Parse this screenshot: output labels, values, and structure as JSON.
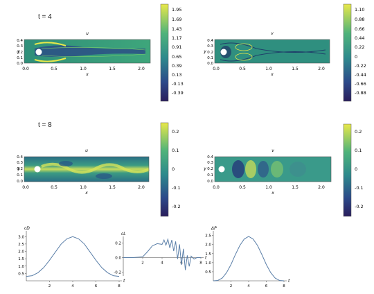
{
  "time_labels": [
    "t = 4",
    "t = 8"
  ],
  "field_plots": [
    {
      "time": "t = 4",
      "title": "u",
      "xlabel": "x",
      "ylabel": "y",
      "xticks": [
        "0.0",
        "0.5",
        "1.0",
        "1.5",
        "2.0"
      ],
      "yticks": [
        "0.0",
        "0.1",
        "0.2",
        "0.3",
        "0.4"
      ],
      "colorbar_ticks": [
        "1.95",
        "1.69",
        "1.43",
        "1.17",
        "0.91",
        "0.65",
        "0.39",
        "0.13",
        "-0.13",
        "-0.39"
      ]
    },
    {
      "time": "t = 4",
      "title": "v",
      "xlabel": "x",
      "ylabel": "y",
      "xticks": [
        "0.0",
        "0.5",
        "1.0",
        "1.5",
        "2.0"
      ],
      "yticks": [
        "0.0",
        "0.1",
        "0.2",
        "0.3",
        "0.4"
      ],
      "colorbar_ticks": [
        "1.10",
        "0.88",
        "0.66",
        "0.44",
        "0.22",
        "0",
        "-0.22",
        "-0.44",
        "-0.66",
        "-0.88"
      ]
    },
    {
      "time": "t = 8",
      "title": "u",
      "xlabel": "x",
      "ylabel": "y",
      "xticks": [
        "0.0",
        "0.5",
        "1.0",
        "1.5",
        "2.0"
      ],
      "yticks": [
        "0.0",
        "0.1",
        "0.2",
        "0.3",
        "0.4"
      ],
      "colorbar_ticks": [
        "0.2",
        "0.1",
        "0",
        "-0.1",
        "-0.2"
      ]
    },
    {
      "time": "t = 8",
      "title": "v",
      "xlabel": "x",
      "ylabel": "y",
      "xticks": [
        "0.0",
        "0.5",
        "1.0",
        "1.5",
        "2.0"
      ],
      "yticks": [
        "0.0",
        "0.1",
        "0.2",
        "0.3",
        "0.4"
      ],
      "colorbar_ticks": [
        "0.2",
        "0.1",
        "0",
        "-0.1",
        "-0.2"
      ]
    }
  ],
  "chart_data": [
    {
      "type": "line",
      "title": "",
      "ylabel": "cD",
      "xlabel": "t",
      "xlim": [
        0,
        8
      ],
      "ylim": [
        0,
        3.2
      ],
      "xticks": [
        "2",
        "4",
        "6",
        "8"
      ],
      "yticks": [
        "0.5",
        "1.0",
        "1.5",
        "2.0",
        "2.5",
        "3.0"
      ],
      "series": [
        {
          "x": [
            0,
            0.5,
            1,
            1.5,
            2,
            2.5,
            3,
            3.5,
            4,
            4.5,
            5,
            5.5,
            6,
            6.5,
            7,
            7.5,
            8
          ],
          "values": [
            0.3,
            0.35,
            0.55,
            0.9,
            1.4,
            1.95,
            2.5,
            2.85,
            3.0,
            2.85,
            2.5,
            1.95,
            1.4,
            0.9,
            0.55,
            0.35,
            0.3
          ]
        }
      ]
    },
    {
      "type": "line",
      "title": "",
      "ylabel": "cL",
      "xlabel": "t",
      "xlim": [
        0,
        8
      ],
      "ylim": [
        -0.25,
        0.25
      ],
      "xticks": [
        "2",
        "4",
        "6",
        "8"
      ],
      "yticks": [
        "-0.2",
        "0.0",
        "0.2"
      ],
      "series": [
        {
          "x": [
            0,
            1,
            2,
            2.5,
            3,
            3.5,
            4,
            4.2,
            4.4,
            4.6,
            4.8,
            5,
            5.2,
            5.4,
            5.6,
            5.8,
            6,
            6.2,
            6.4,
            6.6,
            6.8,
            7,
            7.3,
            7.6,
            8
          ],
          "values": [
            0,
            0,
            0.01,
            0.08,
            0.16,
            0.19,
            0.18,
            0.24,
            0.17,
            0.25,
            0.13,
            0.24,
            0.09,
            0.22,
            -0.02,
            0.18,
            -0.1,
            0.12,
            -0.17,
            0.03,
            -0.12,
            0.02,
            -0.02,
            0.0,
            0.0
          ]
        }
      ]
    },
    {
      "type": "line",
      "title": "",
      "ylabel": "ΔP",
      "xlabel": "t",
      "xlim": [
        0,
        8
      ],
      "ylim": [
        0,
        2.6
      ],
      "xticks": [
        "2",
        "4",
        "6",
        "8"
      ],
      "yticks": [
        "0.5",
        "1.0",
        "1.5",
        "2.0",
        "2.5"
      ],
      "series": [
        {
          "x": [
            0,
            0.5,
            1,
            1.5,
            2,
            2.5,
            3,
            3.5,
            4,
            4.5,
            5,
            5.5,
            6,
            6.5,
            7,
            7.5,
            8
          ],
          "values": [
            0,
            0.02,
            0.15,
            0.45,
            0.9,
            1.45,
            1.95,
            2.3,
            2.45,
            2.3,
            1.95,
            1.45,
            0.9,
            0.45,
            0.15,
            0.02,
            0
          ]
        }
      ]
    }
  ]
}
